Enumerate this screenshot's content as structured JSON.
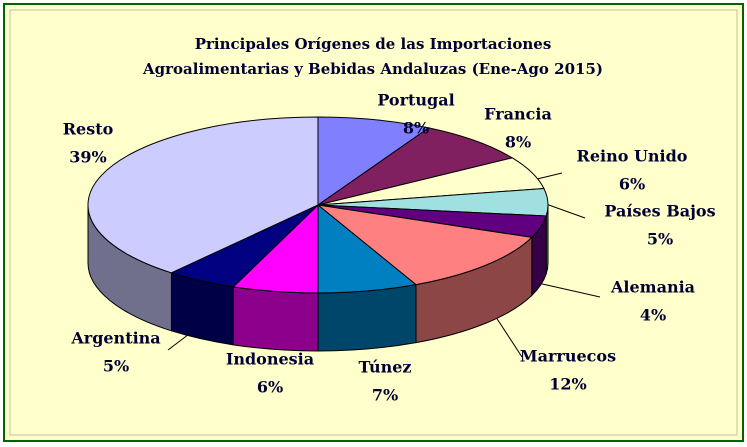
{
  "chart_data": {
    "type": "pie3d",
    "title": [
      "Principales Orígenes de las Importaciones",
      "Agroalimentarias y Bebidas Andaluzas (Ene-Ago 2015)"
    ],
    "categories": [
      "Portugal",
      "Francia",
      "Reino Unido",
      "Países Bajos",
      "Alemania",
      "Marruecos",
      "Túnez",
      "Indonesia",
      "Argentina",
      "Resto"
    ],
    "values": [
      8,
      8,
      6,
      5,
      4,
      12,
      7,
      6,
      5,
      39
    ],
    "value_labels": [
      "8%",
      "8%",
      "6%",
      "5%",
      "4%",
      "12%",
      "7%",
      "6%",
      "5%",
      "39%"
    ],
    "colors": [
      "#8080ff",
      "#802060",
      "#ffffcc",
      "#a0e0e0",
      "#600080",
      "#ff8080",
      "#0080c0",
      "#ff00ff",
      "#000080",
      "#ccccff"
    ]
  }
}
